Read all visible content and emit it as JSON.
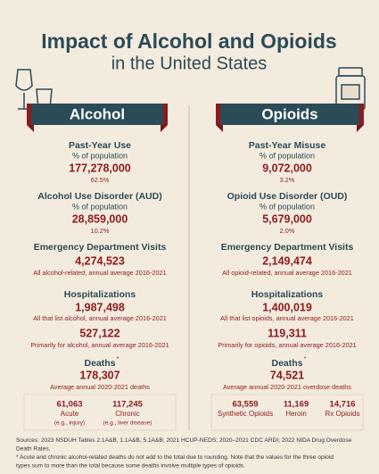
{
  "title": {
    "line1": "Impact of Alcohol and Opioids",
    "line2": "in the United States"
  },
  "columns": [
    {
      "banner": "Alcohol",
      "use": {
        "heading": "Past-Year Use",
        "unit": "% of population",
        "value": "177,278,000",
        "share": "62.5%"
      },
      "disorder": {
        "heading": "Alcohol Use Disorder (AUD)",
        "unit": "% of population",
        "value": "28,859,000",
        "share": "10.2%"
      },
      "ed": {
        "heading": "Emergency Department Visits",
        "value": "4,274,523",
        "note": "All alcohol-related, annual average 2016-2021"
      },
      "hosp": {
        "heading": "Hospitalizations",
        "value": "1,987,498",
        "note": "All that list alcohol, annual average 2016-2021",
        "primary_value": "527,122",
        "primary_note": "Primarily for alcohol, annual average 2016-2021"
      },
      "deaths": {
        "heading": "Deaths",
        "marker": "*",
        "value": "178,307",
        "note": "Average annual 2020-2021 deaths",
        "breakdown": [
          {
            "value": "61,063",
            "label": "Acute",
            "example": "(e.g., injury)"
          },
          {
            "value": "117,245",
            "label": "Chronic",
            "example": "(e.g., liver disease)"
          }
        ]
      }
    },
    {
      "banner": "Opioids",
      "use": {
        "heading": "Past-Year Misuse",
        "unit": "% of population",
        "value": "9,072,000",
        "share": "3.2%"
      },
      "disorder": {
        "heading": "Opioid Use Disorder (OUD)",
        "unit": "% of population",
        "value": "5,679,000",
        "share": "2.0%"
      },
      "ed": {
        "heading": "Emergency Department Visits",
        "value": "2,149,474",
        "note": "All opioid-related, annual average 2016-2021"
      },
      "hosp": {
        "heading": "Hospitalizations",
        "value": "1,400,019",
        "note": "All that list opioids, annual average 2016-2021",
        "primary_value": "119,311",
        "primary_note": "Primarily for opioids, annual average 2016-2021"
      },
      "deaths": {
        "heading": "Deaths",
        "marker": "*",
        "value": "74,521",
        "note": "Average annual 2020-2021 overdose deaths",
        "breakdown": [
          {
            "value": "63,559",
            "label": "Synthetic Opioids"
          },
          {
            "value": "11,169",
            "label": "Heroin"
          },
          {
            "value": "14,716",
            "label": "Rx Opioids"
          }
        ]
      }
    }
  ],
  "footer": {
    "lines": [
      "Sources: 2023 NSDUH Tables 2.1A&B, 1.1A&B, 5.1A&B; 2021 HCUP-NEDS; 2020–2021 CDC ARDI; 2022 NIDA Drug Overdose",
      "Death Rates.",
      "* Acute and chronic alcohol-related deaths do not add to the total due to rounding. Note that the values for the three opioid",
      "types sum to more than the total because some deaths involve multiple types of opioids."
    ]
  }
}
